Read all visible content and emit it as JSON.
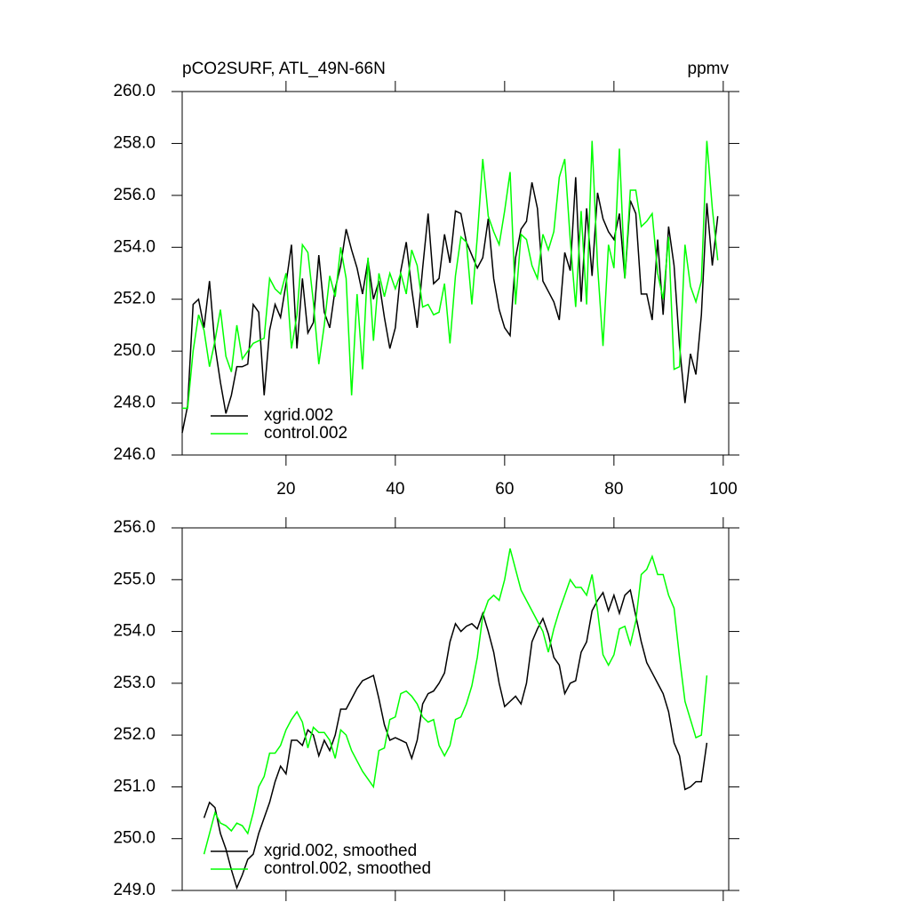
{
  "chart_data": [
    {
      "type": "line",
      "title": "pCO2SURF, ATL_49N-66N",
      "units": "ppmv",
      "x": [
        1,
        2,
        3,
        4,
        5,
        6,
        7,
        8,
        9,
        10,
        11,
        12,
        13,
        14,
        15,
        16,
        17,
        18,
        19,
        20,
        21,
        22,
        23,
        24,
        25,
        26,
        27,
        28,
        29,
        30,
        31,
        32,
        33,
        34,
        35,
        36,
        37,
        38,
        39,
        40,
        41,
        42,
        43,
        44,
        45,
        46,
        47,
        48,
        49,
        50,
        51,
        52,
        53,
        54,
        55,
        56,
        57,
        58,
        59,
        60,
        61,
        62,
        63,
        64,
        65,
        66,
        67,
        68,
        69,
        70,
        71,
        72,
        73,
        74,
        75,
        76,
        77,
        78,
        79,
        80,
        81,
        82,
        83,
        84,
        85,
        86,
        87,
        88,
        89,
        90,
        91,
        92,
        93,
        94,
        95,
        96,
        97,
        98,
        99
      ],
      "xlim": [
        1,
        101
      ],
      "xticks": [
        20,
        40,
        60,
        80,
        100
      ],
      "xtick_labels": true,
      "ylim": [
        246,
        260
      ],
      "yticks": [
        {
          "value": 246,
          "label": "246.0"
        },
        {
          "value": 248,
          "label": "248.0"
        },
        {
          "value": 250,
          "label": "250.0"
        },
        {
          "value": 252,
          "label": "252.0"
        },
        {
          "value": 254,
          "label": "254.0"
        },
        {
          "value": 256,
          "label": "256.0"
        },
        {
          "value": 258,
          "label": "258.0"
        },
        {
          "value": 260,
          "label": "260.0"
        }
      ],
      "legend": "lower left",
      "series": [
        {
          "name": "xgrid.002",
          "color": "#000000",
          "values": [
            246.85,
            247.9,
            251.8,
            252.0,
            250.9,
            252.7,
            250.2,
            248.8,
            247.6,
            248.3,
            249.4,
            249.4,
            249.5,
            251.8,
            251.5,
            248.3,
            250.8,
            251.8,
            251.3,
            252.6,
            254.1,
            250.1,
            252.8,
            250.7,
            251.1,
            253.7,
            251.5,
            250.9,
            252.4,
            253.3,
            254.7,
            253.9,
            253.2,
            252.2,
            253.5,
            252.0,
            252.7,
            251.3,
            250.1,
            250.9,
            253.1,
            254.2,
            252.4,
            250.9,
            253.2,
            255.3,
            252.6,
            252.8,
            254.5,
            253.4,
            255.4,
            255.3,
            254.2,
            253.7,
            253.2,
            253.6,
            255.1,
            252.8,
            251.6,
            250.9,
            250.6,
            253.6,
            254.7,
            255.0,
            256.5,
            255.5,
            252.7,
            252.3,
            251.9,
            251.2,
            253.8,
            253.1,
            256.7,
            251.9,
            255.5,
            252.9,
            256.1,
            255.1,
            254.6,
            254.3,
            255.3,
            252.8,
            255.8,
            255.3,
            252.2,
            252.2,
            251.2,
            254.3,
            251.4,
            254.8,
            253.3,
            250.2,
            248.0,
            249.9,
            249.1,
            251.4,
            255.7,
            253.3,
            255.2
          ]
        },
        {
          "name": "control.002",
          "color": "#00ff00",
          "values": [
            247.8,
            247.8,
            250.0,
            251.4,
            250.8,
            249.4,
            250.4,
            251.6,
            249.8,
            249.2,
            251.0,
            249.7,
            250.0,
            250.3,
            250.4,
            250.5,
            252.8,
            252.4,
            252.2,
            253.0,
            250.1,
            251.4,
            254.1,
            253.8,
            251.9,
            249.5,
            251.0,
            252.9,
            252.1,
            254.0,
            252.8,
            248.3,
            252.2,
            249.3,
            253.6,
            250.4,
            253.0,
            252.1,
            253.0,
            252.4,
            253.0,
            252.2,
            253.9,
            253.3,
            251.7,
            251.8,
            251.4,
            251.5,
            252.6,
            250.3,
            252.9,
            254.4,
            254.2,
            251.8,
            254.4,
            257.4,
            255.2,
            254.6,
            254.1,
            255.4,
            256.9,
            251.8,
            254.5,
            254.3,
            253.3,
            252.8,
            254.5,
            253.9,
            254.6,
            256.7,
            257.4,
            254.3,
            251.7,
            255.4,
            251.8,
            258.1,
            253.3,
            250.2,
            254.1,
            253.2,
            257.8,
            252.8,
            256.2,
            256.2,
            254.8,
            255.0,
            255.3,
            253.0,
            252.0,
            254.4,
            249.3,
            249.4,
            254.1,
            252.5,
            251.9,
            252.7,
            258.1,
            255.5,
            253.5
          ]
        }
      ]
    },
    {
      "type": "line",
      "x": [
        1,
        2,
        3,
        4,
        5,
        6,
        7,
        8,
        9,
        10,
        11,
        12,
        13,
        14,
        15,
        16,
        17,
        18,
        19,
        20,
        21,
        22,
        23,
        24,
        25,
        26,
        27,
        28,
        29,
        30,
        31,
        32,
        33,
        34,
        35,
        36,
        37,
        38,
        39,
        40,
        41,
        42,
        43,
        44,
        45,
        46,
        47,
        48,
        49,
        50,
        51,
        52,
        53,
        54,
        55,
        56,
        57,
        58,
        59,
        60,
        61,
        62,
        63,
        64,
        65,
        66,
        67,
        68,
        69,
        70,
        71,
        72,
        73,
        74,
        75,
        76,
        77,
        78,
        79,
        80,
        81,
        82,
        83,
        84,
        85,
        86,
        87,
        88,
        89,
        90,
        91,
        92,
        93,
        94,
        95,
        96,
        97,
        98,
        99
      ],
      "xlim": [
        1,
        101
      ],
      "xticks": [
        20,
        40,
        60,
        80,
        100
      ],
      "xtick_labels": false,
      "ylim": [
        249,
        256
      ],
      "yticks": [
        {
          "value": 249,
          "label": "249.0"
        },
        {
          "value": 250,
          "label": "250.0"
        },
        {
          "value": 251,
          "label": "251.0"
        },
        {
          "value": 252,
          "label": "252.0"
        },
        {
          "value": 253,
          "label": "253.0"
        },
        {
          "value": 254,
          "label": "254.0"
        },
        {
          "value": 255,
          "label": "255.0"
        },
        {
          "value": 256,
          "label": "256.0"
        }
      ],
      "legend": "lower left",
      "series": [
        {
          "name": "xgrid.002, smoothed",
          "color": "#000000",
          "values": [
            null,
            null,
            null,
            null,
            250.4,
            250.7,
            250.6,
            250.1,
            249.8,
            249.4,
            249.05,
            249.3,
            249.6,
            249.7,
            250.1,
            250.4,
            250.7,
            251.1,
            251.4,
            251.25,
            251.9,
            251.9,
            251.8,
            252.1,
            252.0,
            251.6,
            251.9,
            251.7,
            252.0,
            252.5,
            252.5,
            252.7,
            252.9,
            253.05,
            253.1,
            253.15,
            252.7,
            252.2,
            251.9,
            251.95,
            251.9,
            251.85,
            251.55,
            251.9,
            252.6,
            252.8,
            252.85,
            253.0,
            253.2,
            253.8,
            254.15,
            254.0,
            254.1,
            254.15,
            254.05,
            254.35,
            254.0,
            253.6,
            253.0,
            252.55,
            252.65,
            252.75,
            252.6,
            253.0,
            253.8,
            254.05,
            254.25,
            253.95,
            253.5,
            253.35,
            252.8,
            253.0,
            253.05,
            253.6,
            253.8,
            254.4,
            254.6,
            254.75,
            254.4,
            254.7,
            254.35,
            254.7,
            254.8,
            254.3,
            253.8,
            253.4,
            253.2,
            253.0,
            252.8,
            252.45,
            251.85,
            251.6,
            250.95,
            251.0,
            251.1,
            251.1,
            251.85,
            null,
            null
          ]
        },
        {
          "name": "control.002, smoothed",
          "color": "#00ff00",
          "values": [
            null,
            null,
            null,
            null,
            249.7,
            250.1,
            250.5,
            250.3,
            250.25,
            250.15,
            250.3,
            250.25,
            250.1,
            250.5,
            251.0,
            251.2,
            251.65,
            251.65,
            251.8,
            252.1,
            252.3,
            252.45,
            252.25,
            251.75,
            252.15,
            252.05,
            252.05,
            251.9,
            251.55,
            252.1,
            252.0,
            251.7,
            251.5,
            251.3,
            251.15,
            251.0,
            251.7,
            251.75,
            252.3,
            252.35,
            252.8,
            252.85,
            252.75,
            252.6,
            252.35,
            252.25,
            252.3,
            251.8,
            251.6,
            251.8,
            252.3,
            252.35,
            252.6,
            252.95,
            253.5,
            254.3,
            254.6,
            254.7,
            254.6,
            255.0,
            255.6,
            255.2,
            254.8,
            254.6,
            254.4,
            254.2,
            254.0,
            253.6,
            254.05,
            254.4,
            254.7,
            255.0,
            254.85,
            254.85,
            254.7,
            255.1,
            254.4,
            253.55,
            253.35,
            253.55,
            254.05,
            254.1,
            253.75,
            254.2,
            255.1,
            255.2,
            255.45,
            255.1,
            255.1,
            254.7,
            254.45,
            253.5,
            252.65,
            252.3,
            251.95,
            252.0,
            253.15,
            null,
            null
          ]
        }
      ]
    }
  ]
}
